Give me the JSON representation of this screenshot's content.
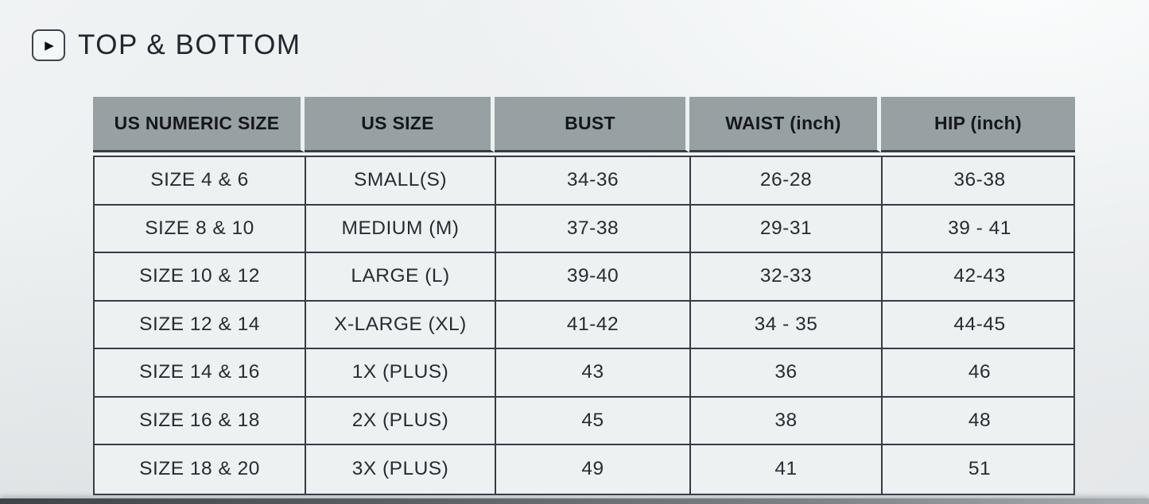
{
  "page": {
    "title": "TOP & BOTTOM"
  },
  "icons": {
    "play_bullet": "▶"
  },
  "chart_data": {
    "type": "table",
    "title": "TOP & BOTTOM",
    "columns": [
      "US NUMERIC SIZE",
      "US SIZE",
      "BUST",
      "WAIST (inch)",
      "HIP (inch)"
    ],
    "rows": [
      [
        "SIZE 4 & 6",
        "SMALL(S)",
        "34-36",
        "26-28",
        "36-38"
      ],
      [
        "SIZE 8 & 10",
        "MEDIUM (M)",
        "37-38",
        "29-31",
        "39 - 41"
      ],
      [
        "SIZE 10 & 12",
        "LARGE (L)",
        "39-40",
        "32-33",
        "42-43"
      ],
      [
        "SIZE 12 & 14",
        "X-LARGE (XL)",
        "41-42",
        "34 - 35",
        "44-45"
      ],
      [
        "SIZE 14 & 16",
        "1X (PLUS)",
        "43",
        "36",
        "46"
      ],
      [
        "SIZE 16 & 18",
        "2X (PLUS)",
        "45",
        "38",
        "48"
      ],
      [
        "SIZE 18 & 20",
        "3X (PLUS)",
        "49",
        "41",
        "51"
      ]
    ]
  },
  "colors": {
    "header_bg": "#97a1a3",
    "header_text": "#15161f",
    "border": "#363c44",
    "body_bg": "#eef1f2",
    "title_text": "#23262e"
  }
}
